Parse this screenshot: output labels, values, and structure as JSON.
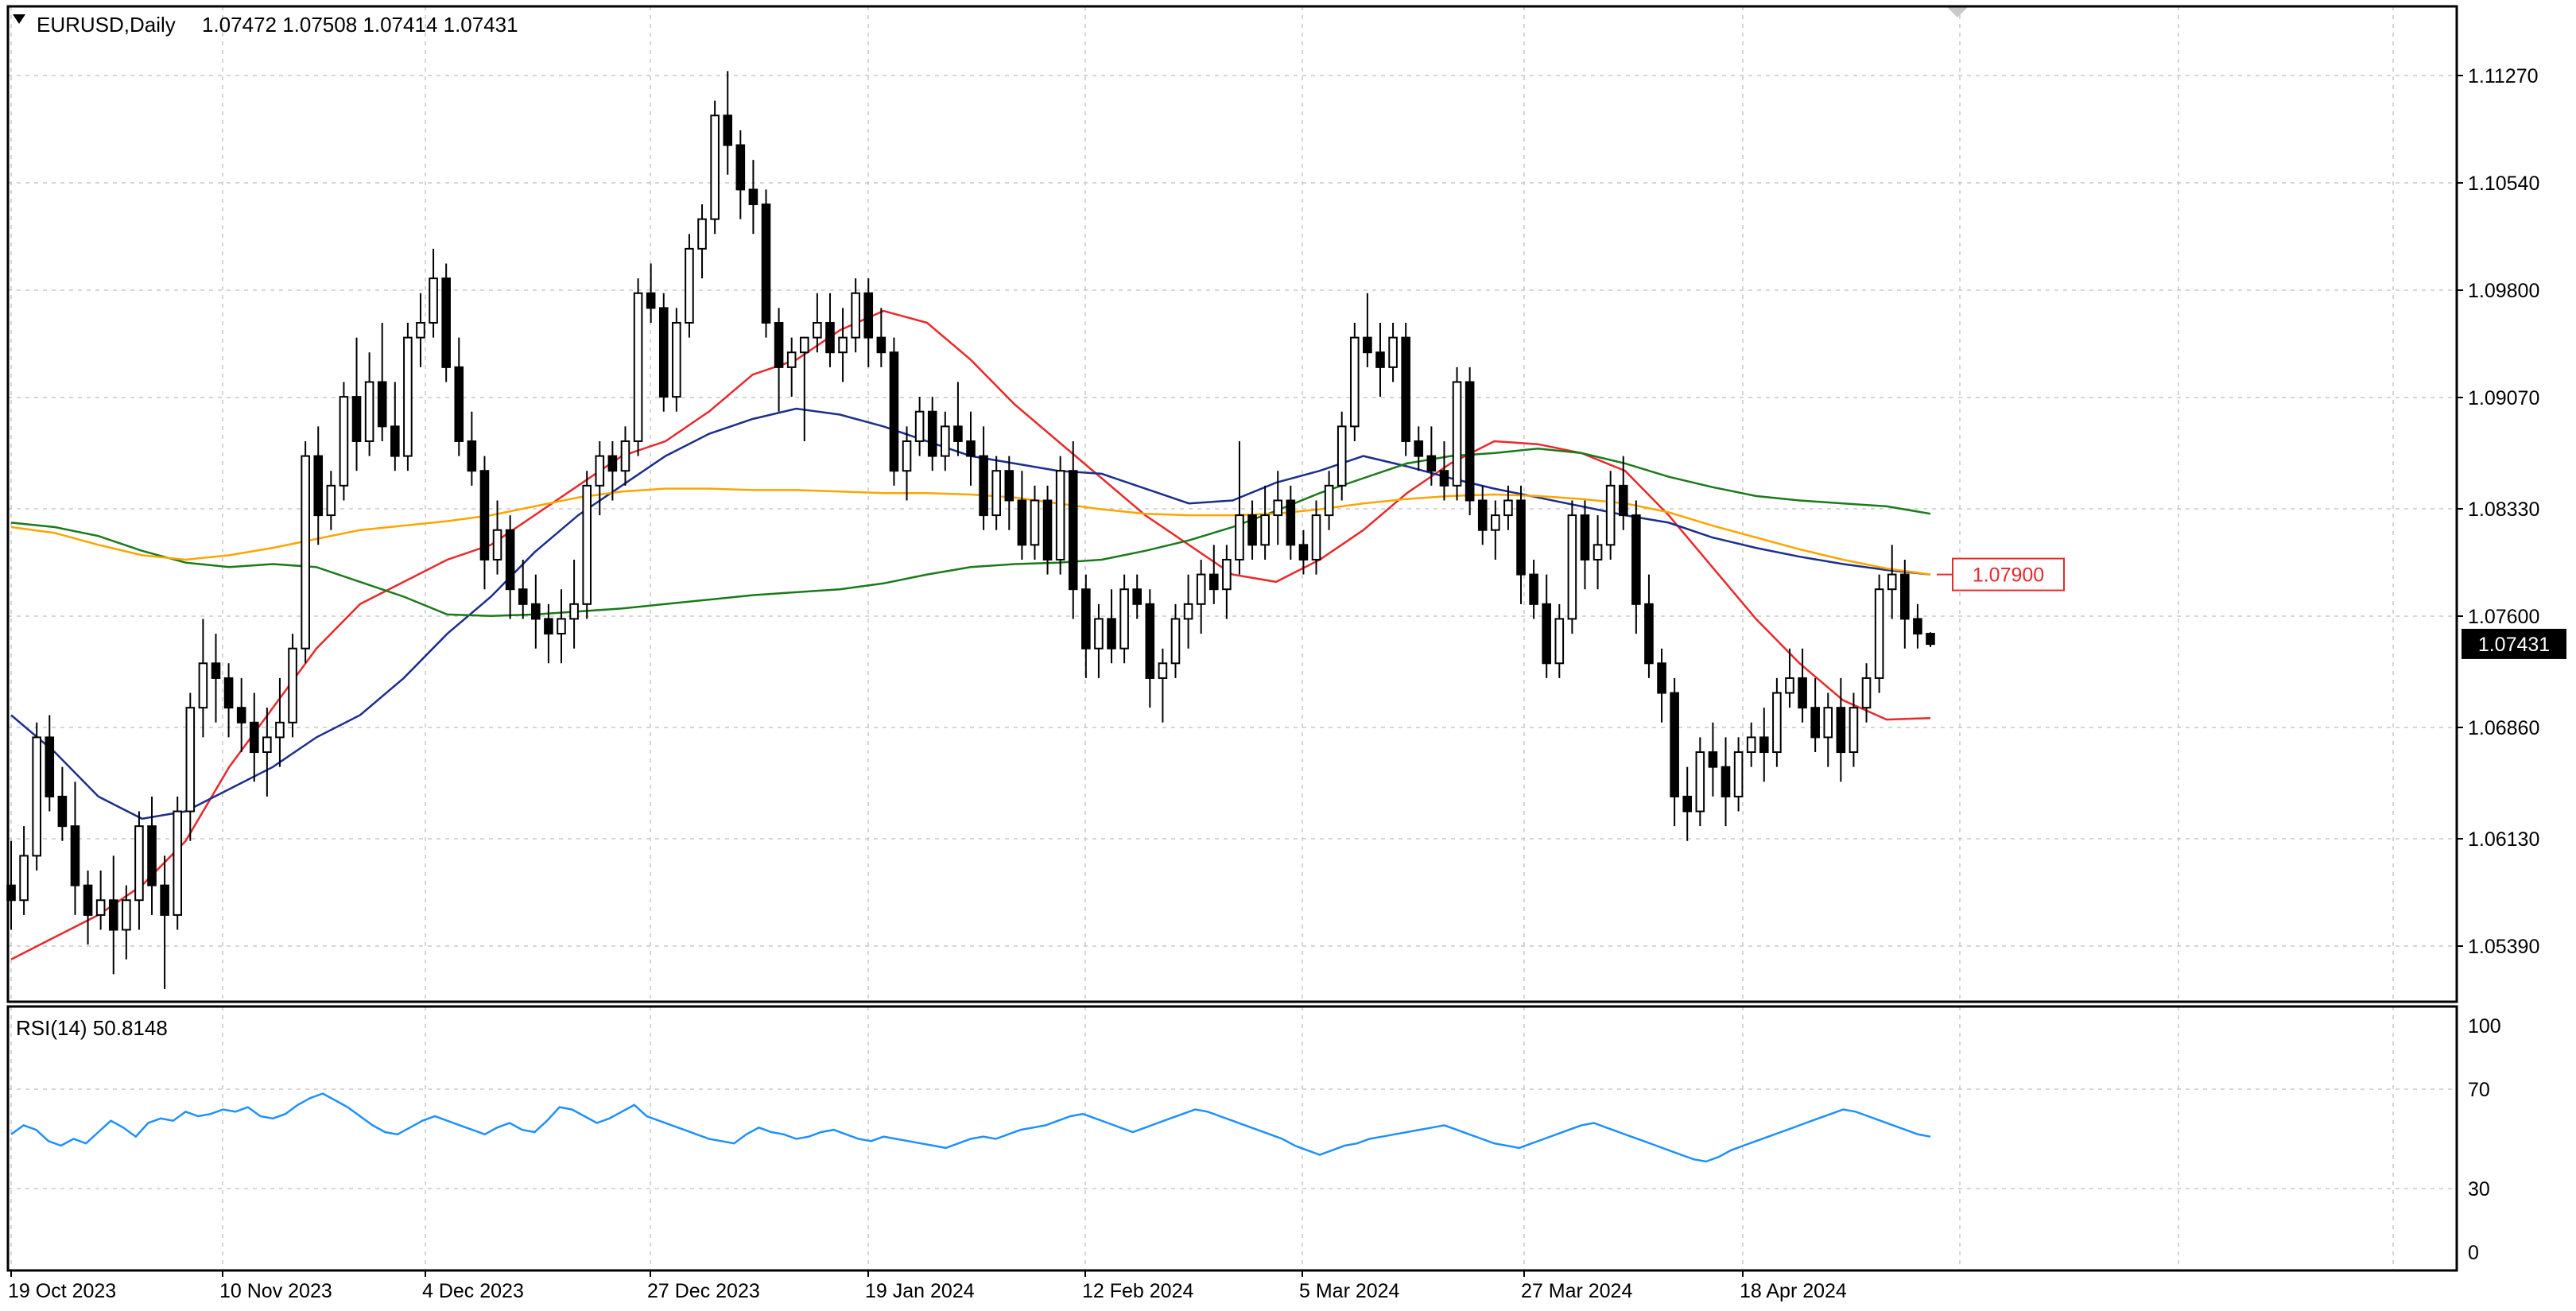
{
  "header": {
    "symbol_label": "EURUSD,Daily",
    "ohlc": "1.07472 1.07508 1.07414 1.07431"
  },
  "rsi_panel": {
    "label": "RSI(14) 50.8148"
  },
  "chart_data": [
    {
      "type": "candlestick",
      "symbol": "EURUSD",
      "timeframe": "Daily",
      "ylim": [
        1.05,
        1.116
      ],
      "y_ticks": [
        "1.11270",
        "1.10540",
        "1.09800",
        "1.09070",
        "1.08330",
        "1.07600",
        "1.06860",
        "1.06130",
        "1.05390"
      ],
      "x_ticks": [
        "19 Oct 2023",
        "10 Nov 2023",
        "4 Dec 2023",
        "27 Dec 2023",
        "19 Jan 2024",
        "12 Feb 2024",
        "5 Mar 2024",
        "27 Mar 2024",
        "18 Apr 2024"
      ],
      "current_price_label": "1.07431",
      "level_label": "1.07900",
      "grid": true,
      "colors": {
        "ma_red": "#e8292b",
        "ma_blue": "#1c2e8c",
        "ma_green": "#1a7a1a",
        "ma_orange": "#ffa500",
        "candle": "#000000",
        "level_label": "#e8292b",
        "current_price_bg": "#000000"
      },
      "ohlc": [
        [
          1.058,
          1.061,
          1.055,
          1.057
        ],
        [
          1.057,
          1.062,
          1.056,
          1.06
        ],
        [
          1.06,
          1.069,
          1.059,
          1.068
        ],
        [
          1.068,
          1.0695,
          1.063,
          1.064
        ],
        [
          1.064,
          1.066,
          1.061,
          1.062
        ],
        [
          1.062,
          1.065,
          1.056,
          1.058
        ],
        [
          1.058,
          1.059,
          1.054,
          1.056
        ],
        [
          1.056,
          1.059,
          1.055,
          1.057
        ],
        [
          1.057,
          1.06,
          1.052,
          1.055
        ],
        [
          1.055,
          1.058,
          1.053,
          1.057
        ],
        [
          1.057,
          1.063,
          1.055,
          1.062
        ],
        [
          1.062,
          1.064,
          1.056,
          1.058
        ],
        [
          1.058,
          1.06,
          1.051,
          1.056
        ],
        [
          1.056,
          1.064,
          1.055,
          1.063
        ],
        [
          1.063,
          1.071,
          1.061,
          1.07
        ],
        [
          1.07,
          1.076,
          1.068,
          1.073
        ],
        [
          1.073,
          1.075,
          1.069,
          1.072
        ],
        [
          1.072,
          1.073,
          1.068,
          1.07
        ],
        [
          1.07,
          1.072,
          1.067,
          1.069
        ],
        [
          1.069,
          1.071,
          1.065,
          1.067
        ],
        [
          1.067,
          1.07,
          1.064,
          1.068
        ],
        [
          1.068,
          1.072,
          1.066,
          1.069
        ],
        [
          1.069,
          1.075,
          1.068,
          1.074
        ],
        [
          1.074,
          1.088,
          1.073,
          1.087
        ],
        [
          1.087,
          1.089,
          1.081,
          1.083
        ],
        [
          1.083,
          1.086,
          1.082,
          1.085
        ],
        [
          1.085,
          1.092,
          1.084,
          1.091
        ],
        [
          1.091,
          1.095,
          1.086,
          1.088
        ],
        [
          1.088,
          1.094,
          1.087,
          1.092
        ],
        [
          1.092,
          1.096,
          1.088,
          1.089
        ],
        [
          1.089,
          1.092,
          1.086,
          1.087
        ],
        [
          1.087,
          1.096,
          1.086,
          1.095
        ],
        [
          1.095,
          1.098,
          1.093,
          1.096
        ],
        [
          1.096,
          1.101,
          1.095,
          1.099
        ],
        [
          1.099,
          1.1,
          1.092,
          1.093
        ],
        [
          1.093,
          1.095,
          1.087,
          1.088
        ],
        [
          1.088,
          1.09,
          1.085,
          1.086
        ],
        [
          1.086,
          1.087,
          1.078,
          1.08
        ],
        [
          1.08,
          1.084,
          1.079,
          1.082
        ],
        [
          1.082,
          1.083,
          1.076,
          1.078
        ],
        [
          1.078,
          1.08,
          1.076,
          1.077
        ],
        [
          1.077,
          1.079,
          1.074,
          1.076
        ],
        [
          1.076,
          1.077,
          1.073,
          1.075
        ],
        [
          1.075,
          1.078,
          1.073,
          1.076
        ],
        [
          1.076,
          1.08,
          1.074,
          1.077
        ],
        [
          1.077,
          1.086,
          1.076,
          1.085
        ],
        [
          1.085,
          1.088,
          1.083,
          1.087
        ],
        [
          1.087,
          1.088,
          1.084,
          1.086
        ],
        [
          1.086,
          1.089,
          1.085,
          1.088
        ],
        [
          1.088,
          1.099,
          1.087,
          1.098
        ],
        [
          1.098,
          1.1,
          1.096,
          1.097
        ],
        [
          1.097,
          1.098,
          1.09,
          1.091
        ],
        [
          1.091,
          1.097,
          1.09,
          1.096
        ],
        [
          1.096,
          1.102,
          1.095,
          1.101
        ],
        [
          1.101,
          1.104,
          1.099,
          1.103
        ],
        [
          1.103,
          1.111,
          1.102,
          1.11
        ],
        [
          1.11,
          1.113,
          1.106,
          1.108
        ],
        [
          1.108,
          1.109,
          1.103,
          1.105
        ],
        [
          1.105,
          1.107,
          1.102,
          1.104
        ],
        [
          1.104,
          1.105,
          1.095,
          1.096
        ],
        [
          1.096,
          1.097,
          1.09,
          1.093
        ],
        [
          1.093,
          1.095,
          1.091,
          1.094
        ],
        [
          1.094,
          1.095,
          1.088,
          1.095
        ],
        [
          1.095,
          1.098,
          1.094,
          1.096
        ],
        [
          1.096,
          1.098,
          1.093,
          1.094
        ],
        [
          1.094,
          1.097,
          1.092,
          1.095
        ],
        [
          1.095,
          1.099,
          1.094,
          1.098
        ],
        [
          1.098,
          1.099,
          1.093,
          1.095
        ],
        [
          1.095,
          1.097,
          1.093,
          1.094
        ],
        [
          1.094,
          1.095,
          1.085,
          1.086
        ],
        [
          1.086,
          1.089,
          1.084,
          1.088
        ],
        [
          1.088,
          1.091,
          1.087,
          1.09
        ],
        [
          1.09,
          1.091,
          1.086,
          1.087
        ],
        [
          1.087,
          1.09,
          1.086,
          1.089
        ],
        [
          1.089,
          1.092,
          1.087,
          1.088
        ],
        [
          1.088,
          1.09,
          1.085,
          1.087
        ],
        [
          1.087,
          1.089,
          1.082,
          1.083
        ],
        [
          1.083,
          1.087,
          1.082,
          1.086
        ],
        [
          1.086,
          1.087,
          1.082,
          1.084
        ],
        [
          1.084,
          1.086,
          1.08,
          1.081
        ],
        [
          1.081,
          1.085,
          1.08,
          1.084
        ],
        [
          1.084,
          1.085,
          1.079,
          1.08
        ],
        [
          1.08,
          1.087,
          1.079,
          1.086
        ],
        [
          1.086,
          1.088,
          1.076,
          1.078
        ],
        [
          1.078,
          1.079,
          1.072,
          1.074
        ],
        [
          1.074,
          1.077,
          1.072,
          1.076
        ],
        [
          1.076,
          1.078,
          1.073,
          1.074
        ],
        [
          1.074,
          1.079,
          1.073,
          1.078
        ],
        [
          1.078,
          1.079,
          1.076,
          1.077
        ],
        [
          1.077,
          1.078,
          1.07,
          1.072
        ],
        [
          1.072,
          1.074,
          1.069,
          1.073
        ],
        [
          1.073,
          1.077,
          1.072,
          1.076
        ],
        [
          1.076,
          1.079,
          1.074,
          1.077
        ],
        [
          1.077,
          1.08,
          1.075,
          1.079
        ],
        [
          1.079,
          1.081,
          1.077,
          1.078
        ],
        [
          1.078,
          1.081,
          1.076,
          1.08
        ],
        [
          1.08,
          1.088,
          1.079,
          1.083
        ],
        [
          1.083,
          1.084,
          1.08,
          1.081
        ],
        [
          1.081,
          1.085,
          1.08,
          1.083
        ],
        [
          1.083,
          1.086,
          1.081,
          1.084
        ],
        [
          1.084,
          1.085,
          1.08,
          1.081
        ],
        [
          1.081,
          1.082,
          1.079,
          1.08
        ],
        [
          1.08,
          1.084,
          1.079,
          1.083
        ],
        [
          1.083,
          1.086,
          1.082,
          1.085
        ],
        [
          1.085,
          1.09,
          1.084,
          1.089
        ],
        [
          1.089,
          1.096,
          1.088,
          1.095
        ],
        [
          1.095,
          1.098,
          1.093,
          1.094
        ],
        [
          1.094,
          1.096,
          1.091,
          1.093
        ],
        [
          1.093,
          1.096,
          1.092,
          1.095
        ],
        [
          1.095,
          1.096,
          1.087,
          1.088
        ],
        [
          1.088,
          1.089,
          1.086,
          1.087
        ],
        [
          1.087,
          1.089,
          1.085,
          1.086
        ],
        [
          1.086,
          1.088,
          1.084,
          1.085
        ],
        [
          1.085,
          1.093,
          1.084,
          1.092
        ],
        [
          1.092,
          1.093,
          1.083,
          1.084
        ],
        [
          1.084,
          1.085,
          1.081,
          1.082
        ],
        [
          1.082,
          1.084,
          1.08,
          1.083
        ],
        [
          1.083,
          1.085,
          1.082,
          1.084
        ],
        [
          1.084,
          1.085,
          1.077,
          1.079
        ],
        [
          1.079,
          1.08,
          1.076,
          1.077
        ],
        [
          1.077,
          1.079,
          1.072,
          1.073
        ],
        [
          1.073,
          1.077,
          1.072,
          1.076
        ],
        [
          1.076,
          1.084,
          1.075,
          1.083
        ],
        [
          1.083,
          1.084,
          1.078,
          1.08
        ],
        [
          1.08,
          1.083,
          1.078,
          1.081
        ],
        [
          1.081,
          1.086,
          1.08,
          1.085
        ],
        [
          1.085,
          1.087,
          1.082,
          1.083
        ],
        [
          1.083,
          1.084,
          1.075,
          1.077
        ],
        [
          1.077,
          1.079,
          1.072,
          1.073
        ],
        [
          1.073,
          1.074,
          1.069,
          1.071
        ],
        [
          1.071,
          1.072,
          1.062,
          1.064
        ],
        [
          1.064,
          1.066,
          1.061,
          1.063
        ],
        [
          1.063,
          1.068,
          1.062,
          1.067
        ],
        [
          1.067,
          1.069,
          1.064,
          1.066
        ],
        [
          1.066,
          1.068,
          1.062,
          1.064
        ],
        [
          1.064,
          1.068,
          1.063,
          1.067
        ],
        [
          1.067,
          1.069,
          1.066,
          1.068
        ],
        [
          1.068,
          1.07,
          1.065,
          1.067
        ],
        [
          1.067,
          1.072,
          1.066,
          1.071
        ],
        [
          1.071,
          1.074,
          1.07,
          1.072
        ],
        [
          1.072,
          1.074,
          1.069,
          1.07
        ],
        [
          1.07,
          1.072,
          1.067,
          1.068
        ],
        [
          1.068,
          1.071,
          1.066,
          1.07
        ],
        [
          1.07,
          1.072,
          1.065,
          1.067
        ],
        [
          1.067,
          1.071,
          1.066,
          1.07
        ],
        [
          1.07,
          1.073,
          1.069,
          1.072
        ],
        [
          1.072,
          1.079,
          1.071,
          1.078
        ],
        [
          1.078,
          1.081,
          1.076,
          1.079
        ],
        [
          1.079,
          1.08,
          1.074,
          1.076
        ],
        [
          1.076,
          1.077,
          1.074,
          1.075
        ],
        [
          1.075,
          1.0751,
          1.0741,
          1.0743
        ]
      ],
      "moving_averages": {
        "red": [
          1.053,
          1.0545,
          1.056,
          1.058,
          1.061,
          1.066,
          1.07,
          1.074,
          1.077,
          1.0785,
          1.08,
          1.081,
          1.083,
          1.085,
          1.087,
          1.088,
          1.09,
          1.0925,
          1.0935,
          1.0955,
          1.0968,
          1.096,
          1.0935,
          1.0905,
          1.088,
          1.0855,
          1.083,
          1.081,
          1.079,
          1.0785,
          1.08,
          1.082,
          1.0845,
          1.0865,
          1.088,
          1.0878,
          1.0872,
          1.086,
          1.083,
          1.0795,
          1.076,
          1.073,
          1.0705,
          1.0692,
          1.0693
        ],
        "blue": [
          1.0695,
          1.067,
          1.064,
          1.0625,
          1.063,
          1.0645,
          1.066,
          1.068,
          1.0695,
          1.072,
          1.075,
          1.0775,
          1.0805,
          1.083,
          1.085,
          1.087,
          1.0885,
          1.0895,
          1.0902,
          1.0898,
          1.089,
          1.088,
          1.087,
          1.0865,
          1.086,
          1.0858,
          1.0848,
          1.0838,
          1.084,
          1.0852,
          1.086,
          1.087,
          1.0863,
          1.0855,
          1.0848,
          1.0842,
          1.0836,
          1.083,
          1.0825,
          1.0815,
          1.0808,
          1.0802,
          1.0797,
          1.0793,
          1.079
        ],
        "green": [
          1.0825,
          1.0822,
          1.0816,
          1.0806,
          1.0798,
          1.0795,
          1.0797,
          1.0795,
          1.0785,
          1.0775,
          1.0763,
          1.0762,
          1.0763,
          1.0765,
          1.0767,
          1.077,
          1.0773,
          1.0776,
          1.0778,
          1.078,
          1.0784,
          1.079,
          1.0795,
          1.0797,
          1.0798,
          1.08,
          1.0806,
          1.0813,
          1.0822,
          1.0833,
          1.0845,
          1.0855,
          1.0865,
          1.087,
          1.0872,
          1.0875,
          1.0872,
          1.0865,
          1.0856,
          1.0849,
          1.0843,
          1.084,
          1.0838,
          1.0836,
          1.0831
        ],
        "orange": [
          1.0822,
          1.0818,
          1.081,
          1.0803,
          1.08,
          1.0803,
          1.0808,
          1.0814,
          1.082,
          1.0823,
          1.0826,
          1.083,
          1.0836,
          1.0842,
          1.0846,
          1.0848,
          1.0848,
          1.0847,
          1.0847,
          1.0846,
          1.0845,
          1.0845,
          1.0844,
          1.0842,
          1.0838,
          1.0834,
          1.0831,
          1.083,
          1.083,
          1.0831,
          1.0834,
          1.0838,
          1.0841,
          1.0843,
          1.0844,
          1.0843,
          1.0841,
          1.0838,
          1.0832,
          1.0823,
          1.0815,
          1.0807,
          1.08,
          1.0794,
          1.079
        ]
      }
    },
    {
      "type": "line",
      "name": "RSI(14)",
      "ylim": [
        0,
        100
      ],
      "y_ticks": [
        "100",
        "70",
        "30",
        "0"
      ],
      "color": "#1e90ff",
      "values": [
        52,
        56,
        54,
        49,
        47,
        50,
        48,
        53,
        58,
        55,
        51,
        57,
        59,
        58,
        62,
        60,
        61,
        63,
        62,
        64,
        60,
        59,
        61,
        65,
        68,
        70,
        67,
        64,
        60,
        56,
        53,
        52,
        55,
        58,
        60,
        58,
        56,
        54,
        52,
        55,
        57,
        54,
        53,
        58,
        64,
        63,
        60,
        57,
        59,
        62,
        65,
        60,
        58,
        56,
        54,
        52,
        50,
        49,
        48,
        52,
        55,
        53,
        52,
        50,
        51,
        53,
        54,
        52,
        50,
        49,
        51,
        50,
        49,
        48,
        47,
        46,
        48,
        50,
        51,
        50,
        52,
        54,
        55,
        56,
        58,
        60,
        61,
        59,
        57,
        55,
        53,
        55,
        57,
        59,
        61,
        63,
        62,
        60,
        58,
        56,
        54,
        52,
        50,
        47,
        45,
        43,
        45,
        47,
        48,
        50,
        51,
        52,
        53,
        54,
        55,
        56,
        54,
        52,
        50,
        48,
        47,
        46,
        48,
        50,
        52,
        54,
        56,
        57,
        55,
        53,
        51,
        49,
        47,
        45,
        43,
        41,
        40,
        42,
        45,
        47,
        49,
        51,
        53,
        55,
        57,
        59,
        61,
        63,
        62,
        60,
        58,
        56,
        54,
        52,
        51
      ]
    }
  ]
}
